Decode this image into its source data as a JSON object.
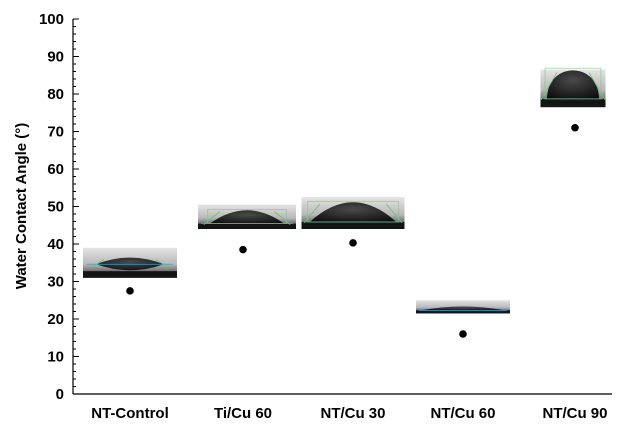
{
  "chart_data": {
    "type": "scatter",
    "title": "",
    "xlabel": "",
    "ylabel": "Water Contact Angle (°)",
    "categories": [
      "NT-Control",
      "Ti/Cu 60",
      "NT/Cu 30",
      "NT/Cu 60",
      "NT/Cu 90"
    ],
    "values": [
      27.5,
      38.5,
      40.3,
      16.0,
      71.0
    ],
    "ylim": [
      0,
      100
    ],
    "yticks": [
      0,
      10,
      20,
      30,
      40,
      50,
      60,
      70,
      80,
      90,
      100
    ],
    "grid": false,
    "legend": "none",
    "marker": "circle",
    "marker_color": "#000000",
    "droplet_insets": [
      {
        "category": "NT-Control",
        "shape": "lens",
        "y_range": [
          31,
          39
        ]
      },
      {
        "category": "Ti/Cu 60",
        "shape": "low-cap",
        "y_range": [
          44,
          50.5
        ]
      },
      {
        "category": "NT/Cu 30",
        "shape": "medium-cap",
        "y_range": [
          44,
          52.5
        ]
      },
      {
        "category": "NT/Cu 60",
        "shape": "flat-film",
        "y_range": [
          21.5,
          25
        ]
      },
      {
        "category": "NT/Cu 90",
        "shape": "high-cap",
        "y_range": [
          76.5,
          86.5
        ]
      }
    ]
  }
}
